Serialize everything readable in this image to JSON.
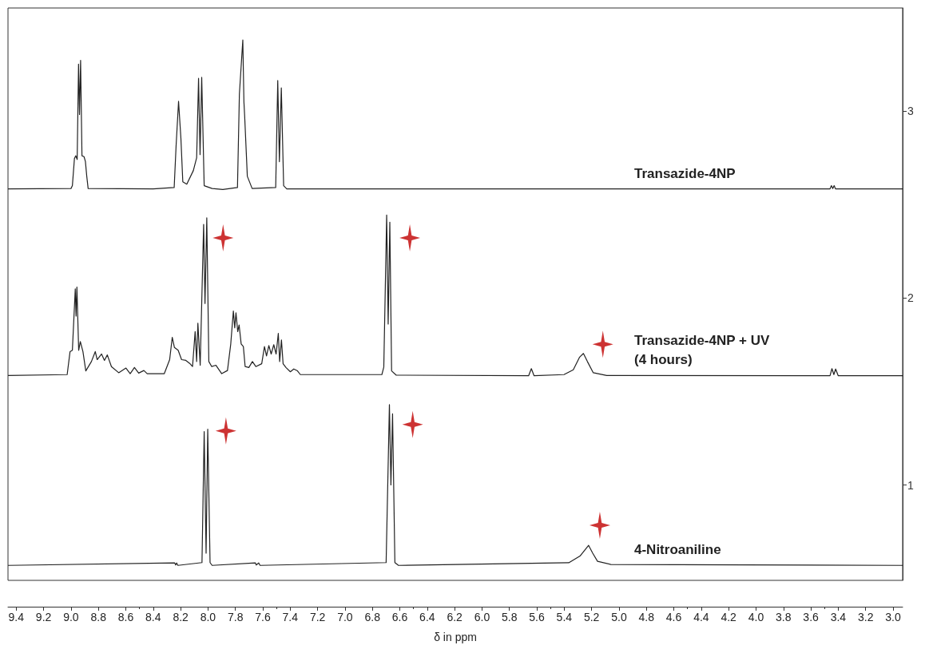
{
  "chart_data": {
    "type": "line",
    "xlabel": "δ in ppm",
    "xlim": [
      9.46,
      2.93
    ],
    "xticks": [
      9.4,
      9.2,
      {
        "value": 9,
        "label": "9.0"
      },
      8.8,
      8.6,
      8.4,
      8.2,
      {
        "value": 8,
        "label": "8.0"
      },
      7.8,
      7.6,
      7.4,
      7.2,
      {
        "value": 7,
        "label": "7.0"
      },
      6.8,
      6.6,
      6.4,
      6.2,
      {
        "value": 6,
        "label": "6.0"
      },
      5.8,
      5.6,
      5.4,
      5.2,
      {
        "value": 5,
        "label": "5.0"
      },
      4.8,
      4.6,
      4.4,
      4.2,
      {
        "value": 4,
        "label": "4.0"
      },
      3.8,
      3.6,
      3.4,
      3.2,
      {
        "value": 3,
        "label": "3.0"
      }
    ],
    "ylim": [
      0.49,
      3.55
    ],
    "yticks": [
      1,
      2,
      3
    ],
    "grid": false,
    "legend": false,
    "marker": "none",
    "line_style": "solid",
    "series": [
      {
        "name": "Transazide-4NP",
        "color": "#222222",
        "x": [
          9.46,
          9.0,
          8.99,
          8.975,
          8.965,
          8.955,
          8.945,
          8.938,
          8.93,
          8.92,
          8.905,
          8.895,
          8.885,
          8.875,
          8.4,
          8.247,
          8.233,
          8.215,
          8.198,
          8.184,
          8.155,
          8.107,
          8.083,
          8.069,
          8.058,
          8.046,
          8.028,
          7.97,
          7.892,
          7.785,
          7.771,
          7.746,
          7.738,
          7.733,
          7.713,
          7.678,
          7.506,
          7.491,
          7.479,
          7.465,
          7.448,
          7.425,
          3.46,
          3.45,
          3.44,
          3.43,
          3.42,
          2.93
        ],
        "values": [
          2.583,
          2.585,
          2.6,
          2.745,
          2.76,
          2.74,
          3.25,
          2.98,
          3.27,
          2.76,
          2.755,
          2.73,
          2.65,
          2.585,
          2.583,
          2.59,
          2.813,
          3.051,
          2.855,
          2.621,
          2.608,
          2.681,
          2.749,
          3.174,
          2.766,
          3.179,
          2.6,
          2.585,
          2.58,
          2.59,
          3.089,
          3.379,
          3.05,
          2.98,
          2.65,
          2.585,
          2.59,
          3.162,
          2.728,
          3.123,
          2.6,
          2.583,
          2.583,
          2.6,
          2.585,
          2.6,
          2.583,
          2.583
        ]
      },
      {
        "name": "Transazide-4NP + UV\n(4 hours)",
        "color": "#222222",
        "x": [
          9.46,
          9.028,
          9.007,
          8.99,
          8.969,
          8.963,
          8.957,
          8.944,
          8.932,
          8.913,
          8.892,
          8.851,
          8.823,
          8.809,
          8.777,
          8.756,
          8.735,
          8.705,
          8.652,
          8.599,
          8.568,
          8.537,
          8.506,
          8.468,
          8.444,
          8.319,
          8.28,
          8.261,
          8.245,
          8.218,
          8.193,
          8.162,
          8.134,
          8.113,
          8.094,
          8.083,
          8.074,
          8.057,
          8.032,
          8.022,
          8.009,
          7.994,
          7.973,
          7.942,
          7.9,
          7.858,
          7.834,
          7.815,
          7.805,
          7.796,
          7.783,
          7.773,
          7.758,
          7.742,
          7.729,
          7.702,
          7.676,
          7.651,
          7.608,
          7.588,
          7.573,
          7.556,
          7.539,
          7.52,
          7.503,
          7.487,
          7.477,
          7.464,
          7.452,
          7.431,
          7.399,
          7.374,
          7.347,
          7.326,
          6.731,
          6.717,
          6.696,
          6.685,
          6.673,
          6.66,
          6.626,
          5.66,
          5.64,
          5.62,
          5.402,
          5.334,
          5.289,
          5.26,
          5.231,
          5.188,
          5.09,
          3.46,
          3.446,
          3.432,
          3.419,
          3.4,
          2.93
        ],
        "values": [
          1.585,
          1.59,
          1.713,
          1.72,
          2.048,
          1.903,
          2.058,
          1.72,
          1.767,
          1.713,
          1.61,
          1.66,
          1.713,
          1.67,
          1.7,
          1.666,
          1.695,
          1.633,
          1.6,
          1.625,
          1.595,
          1.628,
          1.598,
          1.612,
          1.595,
          1.595,
          1.67,
          1.789,
          1.735,
          1.72,
          1.67,
          1.666,
          1.65,
          1.633,
          1.82,
          1.66,
          1.865,
          1.64,
          2.393,
          1.97,
          2.428,
          1.66,
          1.633,
          1.64,
          1.595,
          1.612,
          1.754,
          1.93,
          1.84,
          1.92,
          1.82,
          1.855,
          1.754,
          1.74,
          1.633,
          1.628,
          1.66,
          1.633,
          1.648,
          1.74,
          1.69,
          1.745,
          1.7,
          1.75,
          1.7,
          1.81,
          1.66,
          1.775,
          1.648,
          1.628,
          1.605,
          1.62,
          1.61,
          1.59,
          1.59,
          1.63,
          2.443,
          1.86,
          2.405,
          1.61,
          1.587,
          1.584,
          1.622,
          1.584,
          1.59,
          1.616,
          1.682,
          1.703,
          1.66,
          1.6,
          1.585,
          1.584,
          1.622,
          1.59,
          1.62,
          1.584,
          1.584
        ]
      },
      {
        "name": "4-Nitroaniline",
        "color": "#222222",
        "x": [
          9.46,
          8.243,
          8.236,
          8.229,
          8.22,
          8.044,
          8.028,
          8.014,
          8.002,
          7.985,
          7.97,
          7.654,
          7.648,
          7.63,
          7.62,
          6.7,
          6.676,
          6.665,
          6.653,
          6.636,
          6.61,
          5.367,
          5.285,
          5.25,
          5.222,
          5.192,
          5.157,
          5.06,
          2.93
        ],
        "values": [
          0.57,
          0.583,
          0.572,
          0.583,
          0.57,
          0.585,
          1.285,
          0.635,
          1.298,
          0.585,
          0.57,
          0.583,
          0.572,
          0.583,
          0.57,
          0.585,
          1.43,
          1.0,
          1.38,
          0.585,
          0.57,
          0.584,
          0.62,
          0.652,
          0.677,
          0.635,
          0.592,
          0.575,
          0.57
        ]
      },
      {
        "type": "scatter",
        "marker": "star",
        "color": "#c00000",
        "x": [
          7.89,
          6.527,
          5.118,
          7.869,
          6.506,
          5.14
        ],
        "values": [
          2.321,
          2.321,
          1.752,
          1.289,
          1.323,
          0.784
        ]
      }
    ]
  }
}
